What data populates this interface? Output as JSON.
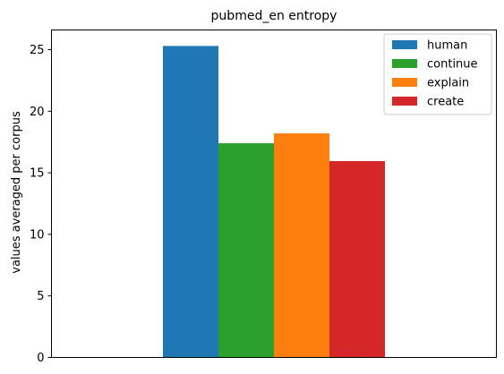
{
  "chart_data": {
    "type": "bar",
    "title": "pubmed_en entropy",
    "xlabel": "",
    "ylabel": "values averaged per corpus",
    "ylim": [
      0,
      26.6
    ],
    "yticks": [
      0,
      5,
      10,
      15,
      20,
      25
    ],
    "grid": false,
    "legend_position": "top-right",
    "series": [
      {
        "name": "human",
        "value": 25.3,
        "color": "#1f77b4"
      },
      {
        "name": "continue",
        "value": 17.4,
        "color": "#2ca02c"
      },
      {
        "name": "explain",
        "value": 18.2,
        "color": "#ff7f0e"
      },
      {
        "name": "create",
        "value": 15.95,
        "color": "#d62728"
      }
    ]
  }
}
